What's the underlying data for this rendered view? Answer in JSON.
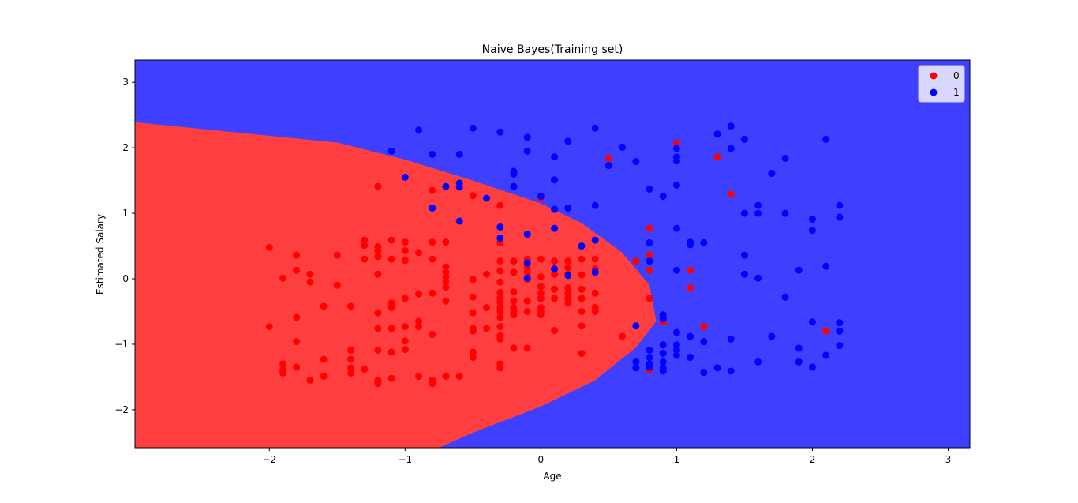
{
  "chart_data": {
    "type": "scatter",
    "title": "Naive Bayes(Training set)",
    "xlabel": "Age",
    "ylabel": "Estimated Salary",
    "xlim": [
      -2.99,
      3.16
    ],
    "ylim": [
      -2.58,
      3.34
    ],
    "xticks": [
      -2,
      -1,
      0,
      1,
      2,
      3
    ],
    "yticks": [
      -2,
      -1,
      0,
      1,
      2,
      3
    ],
    "xtick_labels": [
      "−2",
      "−1",
      "0",
      "1",
      "2",
      "3"
    ],
    "ytick_labels": [
      "−2",
      "−1",
      "0",
      "1",
      "2",
      "3"
    ],
    "grid": false,
    "legend_position": "top-right",
    "region_colors": {
      "0": "#ff3f3f",
      "1": "#3f3fff"
    },
    "decision_boundary": {
      "description_points": [
        [
          -2.99,
          2.39
        ],
        [
          -1.5,
          2.08
        ],
        [
          -1,
          1.82
        ],
        [
          -0.5,
          1.5
        ],
        [
          0,
          1.15
        ],
        [
          0.3,
          0.85
        ],
        [
          0.6,
          0.4
        ],
        [
          0.8,
          -0.1
        ],
        [
          0.85,
          -0.65
        ],
        [
          0.7,
          -1.05
        ],
        [
          0.4,
          -1.55
        ],
        [
          0,
          -1.95
        ],
        [
          -0.5,
          -2.35
        ],
        [
          -0.75,
          -2.58
        ]
      ]
    },
    "series": [
      {
        "name": "0",
        "color": "#ff0000",
        "points": [
          [
            -2,
            0.48
          ],
          [
            -2,
            -0.73
          ],
          [
            -1.9,
            0.01
          ],
          [
            -1.9,
            -1.3
          ],
          [
            -1.9,
            -1.39
          ],
          [
            -1.9,
            -1.44
          ],
          [
            -1.8,
            0.36
          ],
          [
            -1.8,
            0.13
          ],
          [
            -1.8,
            -0.59
          ],
          [
            -1.8,
            -0.96
          ],
          [
            -1.8,
            -1.35
          ],
          [
            -1.7,
            0.07
          ],
          [
            -1.7,
            -0.05
          ],
          [
            -1.7,
            -1.55
          ],
          [
            -1.6,
            -0.42
          ],
          [
            -1.6,
            -1.23
          ],
          [
            -1.6,
            -1.49
          ],
          [
            -1.5,
            0.36
          ],
          [
            -1.5,
            -0.1
          ],
          [
            -1.4,
            -0.42
          ],
          [
            -1.4,
            -1.09
          ],
          [
            -1.4,
            -1.23
          ],
          [
            -1.4,
            -1.36
          ],
          [
            -1.4,
            -1.44
          ],
          [
            -1.3,
            0.59
          ],
          [
            -1.3,
            0.51
          ],
          [
            -1.3,
            0.3
          ],
          [
            -1.3,
            -1.38
          ],
          [
            -1.2,
            1.41
          ],
          [
            -1.2,
            0.49
          ],
          [
            -1.2,
            0.43
          ],
          [
            -1.2,
            0.34
          ],
          [
            -1.2,
            0.07
          ],
          [
            -1.2,
            -0.52
          ],
          [
            -1.2,
            -0.76
          ],
          [
            -1.2,
            -1.09
          ],
          [
            -1.2,
            -1.55
          ],
          [
            -1.2,
            -1.6
          ],
          [
            -1.1,
            0.59
          ],
          [
            -1.1,
            0.3
          ],
          [
            -1.1,
            -0.37
          ],
          [
            -1.1,
            -0.44
          ],
          [
            -1.1,
            -0.76
          ],
          [
            -1.1,
            -1.12
          ],
          [
            -1.1,
            -1.52
          ],
          [
            -1,
            0.56
          ],
          [
            -1,
            0.43
          ],
          [
            -1,
            0.28
          ],
          [
            -1,
            -0.3
          ],
          [
            -1,
            -0.73
          ],
          [
            -1,
            -0.95
          ],
          [
            -1,
            -1.08
          ],
          [
            -0.9,
            0.4
          ],
          [
            -0.9,
            -0.23
          ],
          [
            -0.9,
            -0.65
          ],
          [
            -0.9,
            -0.73
          ],
          [
            -0.9,
            -1.49
          ],
          [
            -0.8,
            1.35
          ],
          [
            -0.8,
            0.56
          ],
          [
            -0.8,
            0.3
          ],
          [
            -0.8,
            -0.22
          ],
          [
            -0.8,
            -0.85
          ],
          [
            -0.8,
            -1.55
          ],
          [
            -0.8,
            -1.6
          ],
          [
            -0.7,
            0.56
          ],
          [
            -0.7,
            0.18
          ],
          [
            -0.7,
            0.1
          ],
          [
            -0.7,
            0.03
          ],
          [
            -0.7,
            -0.05
          ],
          [
            -0.7,
            -0.13
          ],
          [
            -0.7,
            -0.34
          ],
          [
            -0.7,
            -1.49
          ],
          [
            -0.6,
            -1.49
          ],
          [
            -0.5,
            1.27
          ],
          [
            -0.5,
            -0.01
          ],
          [
            -0.5,
            -0.28
          ],
          [
            -0.5,
            -0.52
          ],
          [
            -0.5,
            -0.76
          ],
          [
            -0.5,
            -0.8
          ],
          [
            -0.5,
            -1.12
          ],
          [
            -0.5,
            -1.2
          ],
          [
            -0.4,
            0.07
          ],
          [
            -0.4,
            -0.44
          ],
          [
            -0.4,
            -0.76
          ],
          [
            -0.3,
            1.12
          ],
          [
            -0.3,
            0.55
          ],
          [
            -0.3,
            0.27
          ],
          [
            -0.3,
            0.12
          ],
          [
            -0.3,
            -0.05
          ],
          [
            -0.3,
            -0.21
          ],
          [
            -0.3,
            -0.3
          ],
          [
            -0.3,
            -0.36
          ],
          [
            -0.3,
            -0.44
          ],
          [
            -0.3,
            -0.5
          ],
          [
            -0.3,
            -0.59
          ],
          [
            -0.3,
            -0.73
          ],
          [
            -0.3,
            -0.87
          ],
          [
            -0.3,
            -0.92
          ],
          [
            -0.3,
            -1.3
          ],
          [
            -0.3,
            -1.36
          ],
          [
            -0.2,
            0.27
          ],
          [
            -0.2,
            0.1
          ],
          [
            -0.2,
            -0.2
          ],
          [
            -0.2,
            -0.34
          ],
          [
            -0.2,
            -0.44
          ],
          [
            -0.2,
            -0.5
          ],
          [
            -0.2,
            -0.55
          ],
          [
            -0.2,
            -1.06
          ],
          [
            -0.1,
            0.3
          ],
          [
            -0.1,
            0.17
          ],
          [
            -0.1,
            0.1
          ],
          [
            -0.1,
            -0.01
          ],
          [
            -0.1,
            -0.34
          ],
          [
            -0.1,
            -0.5
          ],
          [
            -0.1,
            -1.06
          ],
          [
            0,
            1.23
          ],
          [
            0,
            0.3
          ],
          [
            0,
            0.03
          ],
          [
            0,
            -0.12
          ],
          [
            0,
            -0.22
          ],
          [
            0,
            -0.3
          ],
          [
            0,
            -0.44
          ],
          [
            0,
            -0.5
          ],
          [
            0,
            -0.55
          ],
          [
            0.1,
            0.27
          ],
          [
            0.1,
            0.07
          ],
          [
            0.1,
            -0.16
          ],
          [
            0.1,
            -0.3
          ],
          [
            0.1,
            -0.79
          ],
          [
            0.2,
            0.27
          ],
          [
            0.2,
            0.17
          ],
          [
            0.2,
            0.07
          ],
          [
            0.2,
            -0.14
          ],
          [
            0.2,
            -0.23
          ],
          [
            0.2,
            -0.3
          ],
          [
            0.2,
            -0.37
          ],
          [
            0.3,
            0.3
          ],
          [
            0.3,
            0.06
          ],
          [
            0.3,
            -0.16
          ],
          [
            0.3,
            -0.3
          ],
          [
            0.3,
            -0.5
          ],
          [
            0.3,
            -0.72
          ],
          [
            0.3,
            -1.14
          ],
          [
            0.4,
            0.3
          ],
          [
            0.4,
            0.15
          ],
          [
            0.4,
            -0.22
          ],
          [
            0.4,
            -0.44
          ],
          [
            0.4,
            -0.5
          ],
          [
            0.5,
            1.84
          ],
          [
            0.6,
            -0.88
          ],
          [
            0.7,
            0.27
          ],
          [
            0.8,
            0.77
          ],
          [
            0.8,
            0.36
          ],
          [
            0.8,
            0.13
          ],
          [
            0.8,
            -0.3
          ],
          [
            0.8,
            -1.39
          ],
          [
            0.9,
            -0.66
          ],
          [
            1,
            2.07
          ],
          [
            1.1,
            0.13
          ],
          [
            1.1,
            -0.14
          ],
          [
            1.2,
            -0.73
          ],
          [
            1.3,
            1.86
          ],
          [
            1.4,
            1.29
          ],
          [
            2.1,
            -0.8
          ]
        ]
      },
      {
        "name": "1",
        "color": "#0000ff",
        "points": [
          [
            -1.1,
            1.95
          ],
          [
            -1,
            1.55
          ],
          [
            -0.9,
            2.27
          ],
          [
            -0.8,
            1.9
          ],
          [
            -0.8,
            1.08
          ],
          [
            -0.7,
            1.41
          ],
          [
            -0.6,
            1.9
          ],
          [
            -0.6,
            1.46
          ],
          [
            -0.6,
            1.4
          ],
          [
            -0.6,
            0.88
          ],
          [
            -0.5,
            2.3
          ],
          [
            -0.4,
            1.23
          ],
          [
            -0.3,
            2.24
          ],
          [
            -0.3,
            0.79
          ],
          [
            -0.3,
            0.62
          ],
          [
            -0.2,
            1.64
          ],
          [
            -0.2,
            1.6
          ],
          [
            -0.2,
            1.41
          ],
          [
            -0.1,
            2.16
          ],
          [
            -0.1,
            1.95
          ],
          [
            -0.1,
            0.68
          ],
          [
            -0.1,
            0.24
          ],
          [
            -0.1,
            0.01
          ],
          [
            0,
            1.26
          ],
          [
            0.1,
            1.86
          ],
          [
            0.1,
            1.51
          ],
          [
            0.1,
            1.06
          ],
          [
            0.1,
            0.77
          ],
          [
            0.1,
            0.15
          ],
          [
            0.2,
            2.1
          ],
          [
            0.2,
            1.08
          ],
          [
            0.2,
            0.05
          ],
          [
            0.3,
            0.5
          ],
          [
            0.4,
            2.3
          ],
          [
            0.4,
            1.12
          ],
          [
            0.4,
            0.59
          ],
          [
            0.4,
            0.1
          ],
          [
            0.5,
            1.73
          ],
          [
            0.6,
            2.01
          ],
          [
            0.7,
            1.79
          ],
          [
            0.7,
            -0.72
          ],
          [
            0.7,
            -1.27
          ],
          [
            0.7,
            -1.36
          ],
          [
            0.8,
            1.37
          ],
          [
            0.8,
            0.55
          ],
          [
            0.8,
            0.27
          ],
          [
            0.8,
            -1.09
          ],
          [
            0.8,
            -1.2
          ],
          [
            0.8,
            -1.3
          ],
          [
            0.8,
            -1.35
          ],
          [
            0.9,
            1.26
          ],
          [
            0.9,
            -0.55
          ],
          [
            0.9,
            -0.61
          ],
          [
            0.9,
            -1.01
          ],
          [
            0.9,
            -1.14
          ],
          [
            0.9,
            -1.27
          ],
          [
            0.9,
            -1.36
          ],
          [
            0.9,
            -1.41
          ],
          [
            1,
            1.99
          ],
          [
            1,
            1.86
          ],
          [
            1,
            1.8
          ],
          [
            1,
            1.43
          ],
          [
            1,
            0.77
          ],
          [
            1,
            0.13
          ],
          [
            1,
            -0.82
          ],
          [
            1,
            -1.01
          ],
          [
            1,
            -1.09
          ],
          [
            1,
            -1.17
          ],
          [
            1.1,
            0.56
          ],
          [
            1.1,
            0.52
          ],
          [
            1.1,
            -0.88
          ],
          [
            1.1,
            -1.2
          ],
          [
            1.2,
            0.55
          ],
          [
            1.2,
            -0.96
          ],
          [
            1.2,
            -1.43
          ],
          [
            1.3,
            2.21
          ],
          [
            1.3,
            -1.36
          ],
          [
            1.4,
            2.33
          ],
          [
            1.4,
            1.99
          ],
          [
            1.4,
            -0.92
          ],
          [
            1.4,
            -1.41
          ],
          [
            1.5,
            2.13
          ],
          [
            1.5,
            1
          ],
          [
            1.5,
            0.36
          ],
          [
            1.5,
            0.07
          ],
          [
            1.6,
            1.12
          ],
          [
            1.6,
            1
          ],
          [
            1.6,
            0.01
          ],
          [
            1.6,
            -1.27
          ],
          [
            1.7,
            1.61
          ],
          [
            1.7,
            -0.88
          ],
          [
            1.8,
            1.84
          ],
          [
            1.8,
            1
          ],
          [
            1.8,
            -0.28
          ],
          [
            1.9,
            0.13
          ],
          [
            1.9,
            -1.06
          ],
          [
            1.9,
            -1.27
          ],
          [
            2,
            0.91
          ],
          [
            2,
            0.74
          ],
          [
            2,
            -0.66
          ],
          [
            2,
            -1.35
          ],
          [
            2.1,
            2.13
          ],
          [
            2.1,
            0.19
          ],
          [
            2.1,
            -1.17
          ],
          [
            2.2,
            1.12
          ],
          [
            2.2,
            0.94
          ],
          [
            2.2,
            -0.67
          ],
          [
            2.2,
            -0.8
          ],
          [
            2.2,
            -1.02
          ]
        ]
      }
    ]
  }
}
